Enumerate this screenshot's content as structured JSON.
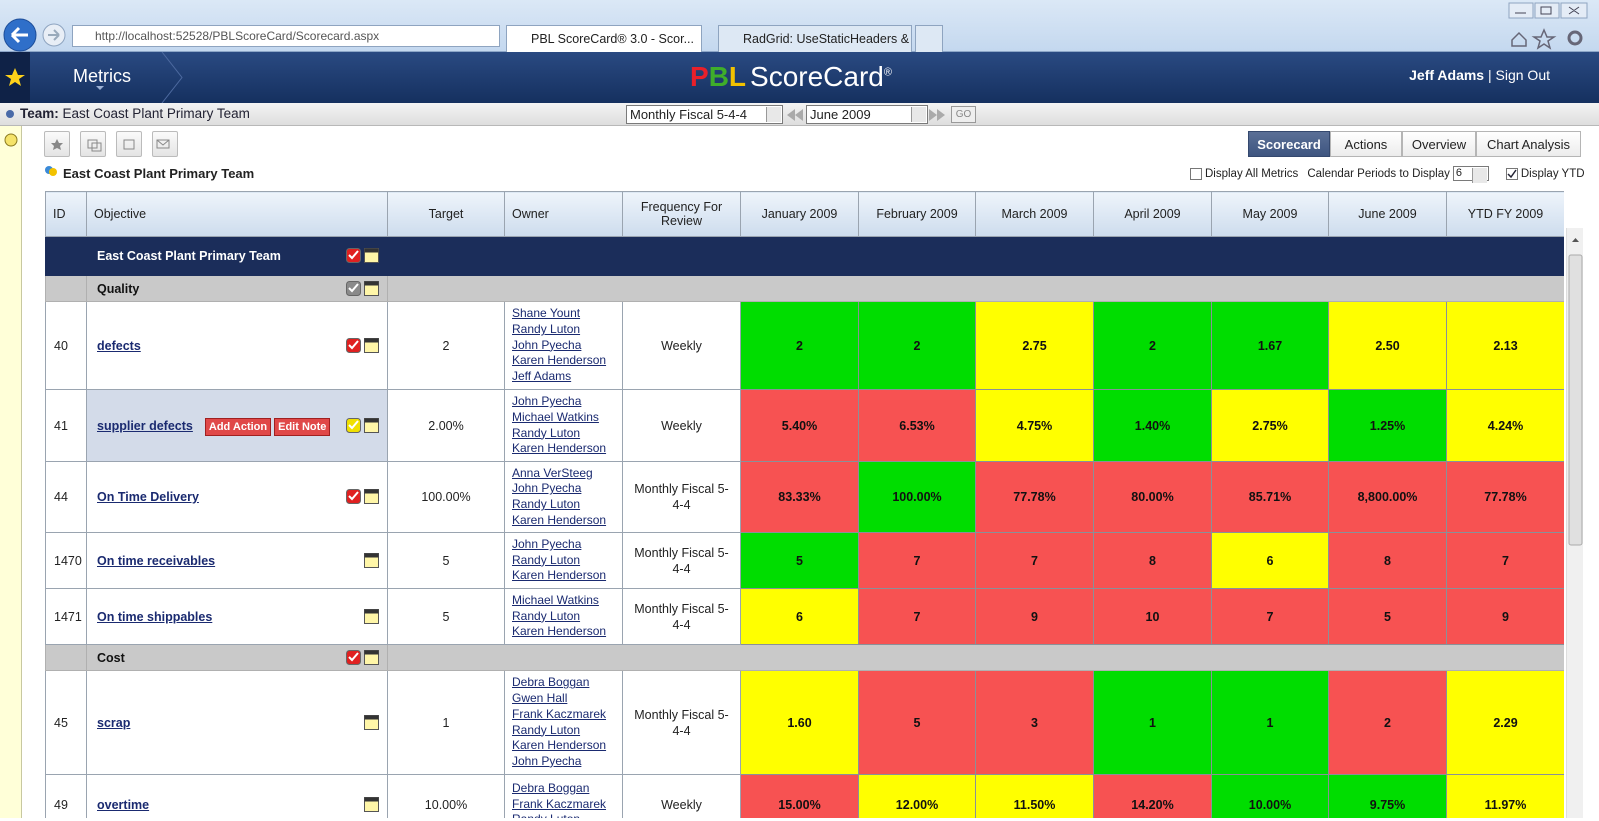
{
  "browser": {
    "url": "http://localhost:52528/PBLScoreCard/Scorecard.aspx",
    "tabs": [
      "PBL ScoreCard® 3.0 - Scor...",
      "RadGrid: UseStaticHeaders & ..."
    ]
  },
  "header": {
    "menu": "Metrics",
    "logo": {
      "letters": [
        {
          "text": "P",
          "color": "#e8202a"
        },
        {
          "text": "B",
          "color": "#3fae2a"
        },
        {
          "text": "L",
          "color": "#f2c200"
        }
      ],
      "name": "ScoreCard",
      "mark": "®"
    },
    "user": "Jeff Adams",
    "separator": "|",
    "sign_out": "Sign Out"
  },
  "team_bar": {
    "label": "Team:",
    "team": "East Coast Plant Primary Team",
    "period_type": "Monthly Fiscal 5-4-4",
    "period": "June 2009",
    "go": "GO"
  },
  "tabs": {
    "items": [
      "Scorecard",
      "Actions",
      "Overview",
      "Chart Analysis"
    ],
    "active": 0
  },
  "options": {
    "title": "East Coast Plant Primary Team",
    "display_all": "Display All Metrics",
    "display_all_checked": false,
    "periods_label": "Calendar Periods to Display",
    "periods": "6",
    "display_ytd": "Display YTD",
    "display_ytd_checked": true
  },
  "table": {
    "columns": [
      "ID",
      "Objective",
      "Target",
      "Owner",
      "Frequency For Review",
      "January 2009",
      "February 2009",
      "March 2009",
      "April 2009",
      "May 2009",
      "June 2009",
      "YTD FY 2009"
    ],
    "rows": [
      {
        "kind": "group",
        "name": "East Coast Plant Primary Team",
        "check": "#e02020"
      },
      {
        "kind": "section",
        "name": "Quality",
        "check": "#8a8a8a"
      },
      {
        "kind": "metric",
        "id": "40",
        "name": "defects",
        "check": "#e02020",
        "target": "2",
        "owners": [
          "Shane Yount",
          "Randy Luton",
          "John Pyecha",
          "Karen Henderson",
          "Jeff Adams"
        ],
        "frequency": "Weekly",
        "values": [
          "2",
          "2",
          "2.75",
          "2",
          "1.67",
          "2.50",
          "2.13"
        ],
        "colors": [
          "#00dd00",
          "#00dd00",
          "#ffff00",
          "#00dd00",
          "#00dd00",
          "#ffff00",
          "#ffff00"
        ]
      },
      {
        "kind": "metric",
        "id": "41",
        "name": "supplier defects",
        "check": "#f0e000",
        "selected": true,
        "buttons": [
          "Add Action",
          "Edit Note"
        ],
        "target": "2.00%",
        "owners": [
          "John Pyecha",
          "Michael Watkins",
          "Randy Luton",
          "Karen Henderson"
        ],
        "frequency": "Weekly",
        "values": [
          "5.40%",
          "6.53%",
          "4.75%",
          "1.40%",
          "2.75%",
          "1.25%",
          "4.24%"
        ],
        "colors": [
          "#f75252",
          "#f75252",
          "#ffff00",
          "#00dd00",
          "#ffff00",
          "#00dd00",
          "#ffff00"
        ]
      },
      {
        "kind": "metric",
        "id": "44",
        "name": "On Time Delivery",
        "check": "#e02020",
        "target": "100.00%",
        "owners": [
          "Anna VerSteeg",
          "John Pyecha",
          "Randy Luton",
          "Karen Henderson"
        ],
        "frequency": "Monthly Fiscal 5-4-4",
        "values": [
          "83.33%",
          "100.00%",
          "77.78%",
          "80.00%",
          "85.71%",
          "8,800.00%",
          "77.78%"
        ],
        "colors": [
          "#f75252",
          "#00dd00",
          "#f75252",
          "#f75252",
          "#f75252",
          "#f75252",
          "#f75252"
        ]
      },
      {
        "kind": "metric",
        "id": "1470",
        "name": "On time receivables",
        "check": null,
        "target": "5",
        "owners": [
          "John Pyecha",
          "Randy Luton",
          "Karen Henderson"
        ],
        "frequency": "Monthly Fiscal 5-4-4",
        "values": [
          "5",
          "7",
          "7",
          "8",
          "6",
          "8",
          "7"
        ],
        "colors": [
          "#00dd00",
          "#f75252",
          "#f75252",
          "#f75252",
          "#ffff00",
          "#f75252",
          "#f75252"
        ]
      },
      {
        "kind": "metric",
        "id": "1471",
        "name": "On time shippables",
        "check": null,
        "target": "5",
        "owners": [
          "Michael Watkins",
          "Randy Luton",
          "Karen Henderson"
        ],
        "frequency": "Monthly Fiscal 5-4-4",
        "values": [
          "6",
          "7",
          "9",
          "10",
          "7",
          "5",
          "9"
        ],
        "colors": [
          "#ffff00",
          "#f75252",
          "#f75252",
          "#f75252",
          "#f75252",
          "#f75252",
          "#f75252"
        ]
      },
      {
        "kind": "section",
        "name": "Cost",
        "check": "#e02020"
      },
      {
        "kind": "metric",
        "id": "45",
        "name": "scrap",
        "check": null,
        "note": true,
        "target": "1",
        "owners": [
          "Debra Boggan",
          "Gwen Hall",
          "Frank Kaczmarek",
          "Randy Luton",
          "Karen Henderson",
          "John Pyecha"
        ],
        "frequency": "Monthly Fiscal 5-4-4",
        "values": [
          "1.60",
          "5",
          "3",
          "1",
          "1",
          "2",
          "2.29"
        ],
        "colors": [
          "#ffff00",
          "#f75252",
          "#f75252",
          "#00dd00",
          "#00dd00",
          "#f75252",
          "#ffff00"
        ]
      },
      {
        "kind": "metric",
        "id": "49",
        "name": "overtime",
        "check": null,
        "note": true,
        "target": "10.00%",
        "owners": [
          "Debra Boggan",
          "Frank Kaczmarek",
          "Randy Luton"
        ],
        "frequency": "Weekly",
        "values": [
          "15.00%",
          "12.00%",
          "11.50%",
          "14.20%",
          "10.00%",
          "9.75%",
          "11.97%"
        ],
        "colors": [
          "#f75252",
          "#ffff00",
          "#ffff00",
          "#f75252",
          "#00dd00",
          "#00dd00",
          "#ffff00"
        ]
      }
    ]
  }
}
